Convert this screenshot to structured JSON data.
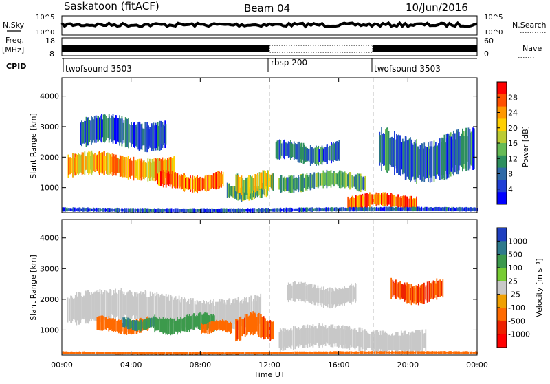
{
  "header": {
    "radar": "Saskatoon (fitACF)",
    "beam": "Beam 04",
    "date": "10/Jun/2016"
  },
  "strips": {
    "nsky_label": "N.Sky",
    "nsky_ticks": [
      "10^5",
      "10^0"
    ],
    "nsearch_label": "N.Search",
    "nsearch_ticks": [
      "10^5",
      "10^0"
    ],
    "freq_label_1": "Freq.",
    "freq_label_2": "[MHz]",
    "freq_ticks": [
      "18",
      "8"
    ],
    "nave_label": "Nave",
    "nave_ticks": [
      "60",
      "0"
    ],
    "cpid_label": "CPID",
    "cpid_segments": [
      {
        "name": "twofsound 3503",
        "start_h": 0,
        "end_h": 12
      },
      {
        "name": "rbsp 200",
        "start_h": 12,
        "end_h": 18
      },
      {
        "name": "twofsound 3503",
        "start_h": 18,
        "end_h": 24
      }
    ]
  },
  "power_panel": {
    "ylabel": "Slant Range [km]",
    "yticks": [
      "4000",
      "3000",
      "2000",
      "1000"
    ],
    "colorbar_label": "Power [dB]",
    "colorbar_ticks": [
      "28",
      "24",
      "20",
      "16",
      "12",
      "8",
      "4"
    ],
    "colorbar_colors": [
      "#ff0000",
      "#ff5000",
      "#ff9900",
      "#ffd000",
      "#bbcc33",
      "#66bb55",
      "#2d8f5e",
      "#2f6aa7",
      "#1f3fd6",
      "#0000ff"
    ]
  },
  "velocity_panel": {
    "ylabel": "Slant Range [km]",
    "yticks": [
      "4000",
      "3000",
      "2000",
      "1000"
    ],
    "colorbar_label": "Velocity [m s⁻¹]",
    "colorbar_ticks": [
      "1000",
      "500",
      "100",
      "25",
      "-25",
      "-100",
      "-500",
      "-1000"
    ],
    "colorbar_colors": [
      "#1f3fc0",
      "#2e7a8c",
      "#3c9a4c",
      "#77cc33",
      "#c8c8c8",
      "#f0a000",
      "#ff6a00",
      "#ee2200",
      "#ff0000"
    ]
  },
  "xaxis": {
    "ticks": [
      "00:00",
      "04:00",
      "08:00",
      "12:00",
      "16:00",
      "20:00",
      "00:00"
    ],
    "label": "Time UT"
  },
  "chart_data": [
    {
      "type": "heatmap",
      "quantity": "Power",
      "unit": "dB",
      "x_range_h": [
        0,
        24
      ],
      "y_range_km": [
        180,
        4600
      ],
      "colorbar_range": [
        0,
        32
      ],
      "bands": [
        {
          "t0": 0.3,
          "t1": 6.5,
          "r0": 1300,
          "r1": 2100,
          "value": 22
        },
        {
          "t0": 5.5,
          "t1": 9.3,
          "r0": 900,
          "r1": 1500,
          "value": 26
        },
        {
          "t0": 9.5,
          "t1": 11.9,
          "r0": 600,
          "r1": 1100,
          "value": 14
        },
        {
          "t0": 10.0,
          "t1": 12.2,
          "r0": 800,
          "r1": 1500,
          "value": 18
        },
        {
          "t0": 12.5,
          "t1": 17.5,
          "r0": 900,
          "r1": 1500,
          "value": 12
        },
        {
          "t0": 16.5,
          "t1": 20.5,
          "r0": 300,
          "r1": 800,
          "value": 26
        },
        {
          "t0": 1.0,
          "t1": 6.0,
          "r0": 2300,
          "r1": 3300,
          "value": 6
        },
        {
          "t0": 12.3,
          "t1": 16.0,
          "r0": 1800,
          "r1": 2500,
          "value": 8
        },
        {
          "t0": 18.3,
          "t1": 23.8,
          "r0": 1300,
          "r1": 2800,
          "value": 8
        },
        {
          "t0": 0.0,
          "t1": 24.0,
          "r0": 200,
          "r1": 350,
          "value": 6
        }
      ]
    },
    {
      "type": "heatmap",
      "quantity": "Velocity",
      "unit": "m s⁻¹",
      "x_range_h": [
        0,
        24
      ],
      "y_range_km": [
        180,
        4600
      ],
      "colorbar_range": [
        -1000,
        1000
      ],
      "bands": [
        {
          "t0": 0.3,
          "t1": 11.5,
          "r0": 1100,
          "r1": 2200,
          "value": 0
        },
        {
          "t0": 2.0,
          "t1": 5.0,
          "r0": 900,
          "r1": 1400,
          "value": -300
        },
        {
          "t0": 3.5,
          "t1": 5.5,
          "r0": 1000,
          "r1": 1400,
          "value": 300
        },
        {
          "t0": 5.3,
          "t1": 8.8,
          "r0": 900,
          "r1": 1500,
          "value": 200
        },
        {
          "t0": 8.0,
          "t1": 9.8,
          "r0": 900,
          "r1": 1300,
          "value": -150
        },
        {
          "t0": 10.0,
          "t1": 12.2,
          "r0": 700,
          "r1": 1500,
          "value": -400
        },
        {
          "t0": 12.5,
          "t1": 21.0,
          "r0": 300,
          "r1": 1100,
          "value": 0
        },
        {
          "t0": 13.0,
          "t1": 17.0,
          "r0": 1800,
          "r1": 2500,
          "value": 0
        },
        {
          "t0": 19.0,
          "t1": 22.0,
          "r0": 1900,
          "r1": 2600,
          "value": -500
        },
        {
          "t0": 0.0,
          "t1": 24.0,
          "r0": 200,
          "r1": 300,
          "value": -150
        }
      ]
    }
  ]
}
